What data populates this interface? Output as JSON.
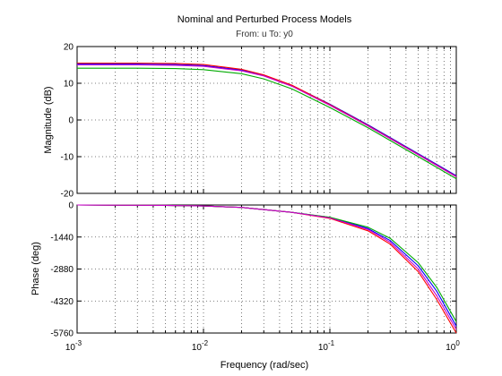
{
  "chart_data": {
    "type": "line",
    "title": "Nominal and Perturbed Process Models",
    "subtitle": "From: u  To: y0",
    "xlabel": "Frequency  (rad/sec)",
    "xscale": "log",
    "xlim": [
      0.001,
      1
    ],
    "x_ticks": [
      {
        "value": 0.001,
        "base": "10",
        "exp": "-3"
      },
      {
        "value": 0.01,
        "base": "10",
        "exp": "-2"
      },
      {
        "value": 0.1,
        "base": "10",
        "exp": "-1"
      },
      {
        "value": 1,
        "base": "10",
        "exp": "0"
      }
    ],
    "grid": true,
    "colors": {
      "series": [
        "#0000ff",
        "#ff0000",
        "#00aa00",
        "#cc00cc"
      ],
      "axes": "#000000",
      "grid": "#555555"
    },
    "panels": [
      {
        "id": "magnitude",
        "ylabel": "Magnitude (dB)",
        "ylim": [
          -20,
          20
        ],
        "y_ticks": [
          "20",
          "10",
          "0",
          "-10",
          "-20"
        ],
        "y_tick_values": [
          20,
          10,
          0,
          -10,
          -20
        ],
        "series": [
          {
            "x": [
              0.001,
              0.003,
              0.006,
              0.01,
              0.02,
              0.03,
              0.05,
              0.1,
              0.2,
              0.5,
              1
            ],
            "values": [
              15.2,
              15.2,
              15.1,
              14.8,
              13.6,
              12.2,
              9.4,
              4.3,
              -1.3,
              -9.2,
              -15.2
            ]
          },
          {
            "x": [
              0.001,
              0.003,
              0.006,
              0.01,
              0.02,
              0.03,
              0.05,
              0.1,
              0.2,
              0.5,
              1
            ],
            "values": [
              15.5,
              15.5,
              15.4,
              15.1,
              13.8,
              12.3,
              9.5,
              4.2,
              -1.5,
              -9.4,
              -15.4
            ]
          },
          {
            "x": [
              0.001,
              0.003,
              0.006,
              0.01,
              0.02,
              0.03,
              0.05,
              0.1,
              0.2,
              0.5,
              1
            ],
            "values": [
              14.1,
              14.1,
              14.0,
              13.7,
              12.6,
              11.2,
              8.5,
              3.4,
              -2.1,
              -10.0,
              -16.0
            ]
          },
          {
            "x": [
              0.001,
              0.003,
              0.006,
              0.01,
              0.02,
              0.03,
              0.05,
              0.1,
              0.2,
              0.5,
              1
            ],
            "values": [
              15.0,
              15.0,
              14.9,
              14.6,
              13.4,
              12.0,
              9.2,
              4.0,
              -1.6,
              -9.5,
              -15.5
            ]
          }
        ]
      },
      {
        "id": "phase",
        "ylabel": "Phase (deg)",
        "ylim": [
          -5760,
          0
        ],
        "y_ticks": [
          "0",
          "-1440",
          "-2880",
          "-4320",
          "-5760"
        ],
        "y_tick_values": [
          0,
          -1440,
          -2880,
          -4320,
          -5760
        ],
        "series": [
          {
            "x": [
              0.001,
              0.005,
              0.01,
              0.02,
              0.05,
              0.1,
              0.2,
              0.3,
              0.5,
              0.7,
              1
            ],
            "values": [
              0,
              -15,
              -45,
              -110,
              -330,
              -560,
              -1060,
              -1600,
              -2740,
              -3880,
              -5450
            ]
          },
          {
            "x": [
              0.001,
              0.005,
              0.01,
              0.02,
              0.05,
              0.1,
              0.2,
              0.3,
              0.5,
              0.7,
              1
            ],
            "values": [
              0,
              -15,
              -45,
              -110,
              -330,
              -600,
              -1160,
              -1760,
              -3000,
              -4250,
              -5760
            ]
          },
          {
            "x": [
              0.001,
              0.005,
              0.01,
              0.02,
              0.05,
              0.1,
              0.2,
              0.3,
              0.5,
              0.7,
              1
            ],
            "values": [
              0,
              -15,
              -45,
              -110,
              -330,
              -550,
              -1000,
              -1500,
              -2600,
              -3700,
              -5250
            ]
          },
          {
            "x": [
              0.001,
              0.005,
              0.01,
              0.02,
              0.05,
              0.1,
              0.2,
              0.3,
              0.5,
              0.7,
              1
            ],
            "values": [
              0,
              -15,
              -45,
              -110,
              -330,
              -580,
              -1100,
              -1680,
              -2880,
              -4080,
              -5600
            ]
          }
        ]
      }
    ]
  }
}
